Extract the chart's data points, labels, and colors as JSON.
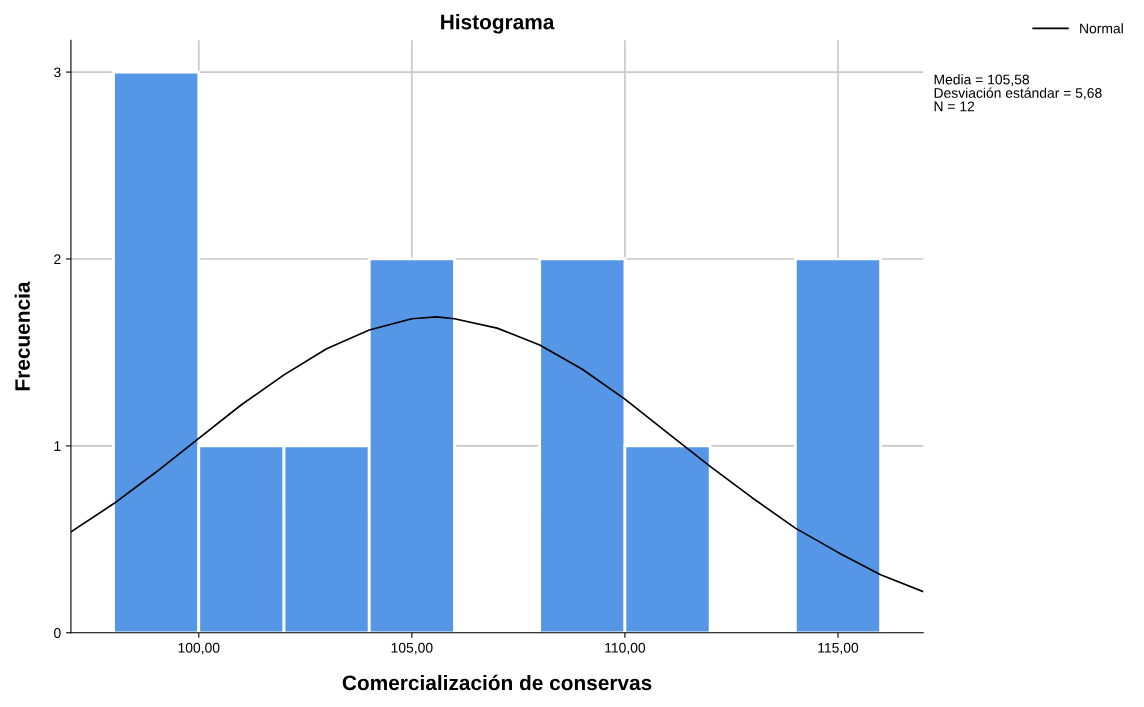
{
  "chart_data": {
    "type": "histogram",
    "title": "Histograma",
    "xlabel": "Comercialización de conservas",
    "ylabel": "Frecuencia",
    "series": [
      {
        "bins": [
          98,
          100,
          102,
          104,
          106,
          108,
          110,
          112,
          114,
          116
        ],
        "values": [
          3,
          1,
          1,
          2,
          0,
          2,
          1,
          0,
          2
        ],
        "color": "#5596e6"
      },
      {
        "type": "line",
        "name": "Normal",
        "color": "#000000",
        "x": [
          97,
          98,
          99,
          100,
          101,
          102,
          103,
          104,
          105,
          105.58,
          106,
          107,
          108,
          109,
          110,
          111,
          112,
          113,
          114,
          115,
          116,
          117
        ],
        "values": [
          0.54,
          0.69,
          0.86,
          1.04,
          1.22,
          1.38,
          1.52,
          1.62,
          1.68,
          1.69,
          1.68,
          1.63,
          1.54,
          1.41,
          1.25,
          1.07,
          0.89,
          0.72,
          0.56,
          0.43,
          0.31,
          0.22
        ]
      }
    ],
    "xlim": [
      97,
      117
    ],
    "xticks": [
      {
        "value": 100,
        "label": "100,00"
      },
      {
        "value": 105,
        "label": "105,00"
      },
      {
        "value": 110,
        "label": "110,00"
      },
      {
        "value": 115,
        "label": "115,00"
      }
    ],
    "ylim": [
      0,
      3.17
    ],
    "yticks": [
      0,
      1,
      2,
      3
    ],
    "grid": true,
    "legend": "top right",
    "marker": "none",
    "line_style": "solid",
    "annotations": [
      "Media = 105,58",
      "Desviación estándar = 5,68",
      "N = 12"
    ]
  }
}
